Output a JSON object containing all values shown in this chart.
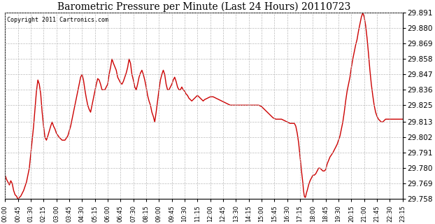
{
  "title": "Barometric Pressure per Minute (Last 24 Hours) 20110723",
  "copyright": "Copyright 2011 Cartronics.com",
  "line_color": "#cc0000",
  "bg_color": "#ffffff",
  "grid_color": "#bbbbbb",
  "yticks": [
    29.758,
    29.769,
    29.78,
    29.791,
    29.802,
    29.813,
    29.825,
    29.836,
    29.847,
    29.858,
    29.869,
    29.88,
    29.891
  ],
  "ymin": 29.758,
  "ymax": 29.891,
  "xtick_labels": [
    "00:00",
    "00:45",
    "01:30",
    "02:15",
    "03:00",
    "03:45",
    "04:30",
    "05:15",
    "06:00",
    "06:45",
    "07:30",
    "08:15",
    "09:00",
    "09:45",
    "10:30",
    "11:15",
    "12:00",
    "12:45",
    "13:30",
    "14:15",
    "15:00",
    "15:45",
    "16:30",
    "17:15",
    "18:00",
    "18:45",
    "19:30",
    "20:15",
    "21:00",
    "21:45",
    "22:30",
    "23:15"
  ],
  "x_values": [
    0,
    45,
    90,
    135,
    180,
    225,
    270,
    315,
    360,
    405,
    450,
    495,
    540,
    585,
    630,
    675,
    720,
    765,
    810,
    855,
    900,
    945,
    990,
    1035,
    1080,
    1125,
    1170,
    1215,
    1260,
    1305,
    1350,
    1395
  ],
  "pressure_data": [
    [
      0,
      29.775
    ],
    [
      5,
      29.772
    ],
    [
      10,
      29.77
    ],
    [
      15,
      29.768
    ],
    [
      20,
      29.771
    ],
    [
      25,
      29.769
    ],
    [
      30,
      29.764
    ],
    [
      35,
      29.761
    ],
    [
      40,
      29.76
    ],
    [
      45,
      29.758
    ],
    [
      55,
      29.76
    ],
    [
      65,
      29.764
    ],
    [
      75,
      29.77
    ],
    [
      85,
      29.78
    ],
    [
      90,
      29.79
    ],
    [
      100,
      29.81
    ],
    [
      110,
      29.835
    ],
    [
      115,
      29.843
    ],
    [
      120,
      29.84
    ],
    [
      125,
      29.833
    ],
    [
      130,
      29.82
    ],
    [
      135,
      29.81
    ],
    [
      140,
      29.802
    ],
    [
      145,
      29.8
    ],
    [
      150,
      29.803
    ],
    [
      160,
      29.81
    ],
    [
      165,
      29.813
    ],
    [
      170,
      29.81
    ],
    [
      175,
      29.808
    ],
    [
      180,
      29.805
    ],
    [
      190,
      29.802
    ],
    [
      200,
      29.8
    ],
    [
      210,
      29.8
    ],
    [
      220,
      29.803
    ],
    [
      230,
      29.81
    ],
    [
      240,
      29.82
    ],
    [
      250,
      29.83
    ],
    [
      260,
      29.84
    ],
    [
      265,
      29.845
    ],
    [
      270,
      29.847
    ],
    [
      275,
      29.843
    ],
    [
      280,
      29.836
    ],
    [
      285,
      29.83
    ],
    [
      290,
      29.825
    ],
    [
      295,
      29.822
    ],
    [
      300,
      29.82
    ],
    [
      305,
      29.825
    ],
    [
      315,
      29.835
    ],
    [
      320,
      29.84
    ],
    [
      325,
      29.844
    ],
    [
      330,
      29.843
    ],
    [
      335,
      29.84
    ],
    [
      340,
      29.836
    ],
    [
      350,
      29.836
    ],
    [
      355,
      29.838
    ],
    [
      360,
      29.84
    ],
    [
      365,
      29.847
    ],
    [
      370,
      29.852
    ],
    [
      375,
      29.858
    ],
    [
      380,
      29.855
    ],
    [
      390,
      29.85
    ],
    [
      395,
      29.845
    ],
    [
      400,
      29.843
    ],
    [
      405,
      29.841
    ],
    [
      410,
      29.84
    ],
    [
      415,
      29.842
    ],
    [
      420,
      29.845
    ],
    [
      425,
      29.848
    ],
    [
      430,
      29.852
    ],
    [
      435,
      29.858
    ],
    [
      440,
      29.855
    ],
    [
      445,
      29.847
    ],
    [
      450,
      29.843
    ],
    [
      455,
      29.838
    ],
    [
      460,
      29.836
    ],
    [
      465,
      29.84
    ],
    [
      470,
      29.845
    ],
    [
      475,
      29.848
    ],
    [
      480,
      29.85
    ],
    [
      485,
      29.847
    ],
    [
      490,
      29.843
    ],
    [
      495,
      29.838
    ],
    [
      500,
      29.832
    ],
    [
      505,
      29.828
    ],
    [
      510,
      29.825
    ],
    [
      515,
      29.82
    ],
    [
      520,
      29.817
    ],
    [
      525,
      29.813
    ],
    [
      530,
      29.82
    ],
    [
      535,
      29.828
    ],
    [
      540,
      29.836
    ],
    [
      545,
      29.843
    ],
    [
      550,
      29.847
    ],
    [
      555,
      29.85
    ],
    [
      560,
      29.847
    ],
    [
      565,
      29.84
    ],
    [
      570,
      29.836
    ],
    [
      575,
      29.836
    ],
    [
      580,
      29.838
    ],
    [
      585,
      29.84
    ],
    [
      590,
      29.843
    ],
    [
      595,
      29.845
    ],
    [
      600,
      29.842
    ],
    [
      605,
      29.838
    ],
    [
      610,
      29.836
    ],
    [
      615,
      29.836
    ],
    [
      620,
      29.838
    ],
    [
      625,
      29.836
    ],
    [
      630,
      29.835
    ],
    [
      635,
      29.833
    ],
    [
      640,
      29.832
    ],
    [
      645,
      29.83
    ],
    [
      650,
      29.829
    ],
    [
      655,
      29.828
    ],
    [
      660,
      29.829
    ],
    [
      665,
      29.83
    ],
    [
      670,
      29.831
    ],
    [
      675,
      29.832
    ],
    [
      680,
      29.831
    ],
    [
      685,
      29.83
    ],
    [
      690,
      29.829
    ],
    [
      695,
      29.828
    ],
    [
      700,
      29.829
    ],
    [
      710,
      29.83
    ],
    [
      720,
      29.831
    ],
    [
      730,
      29.831
    ],
    [
      740,
      29.83
    ],
    [
      750,
      29.829
    ],
    [
      760,
      29.828
    ],
    [
      770,
      29.827
    ],
    [
      780,
      29.826
    ],
    [
      790,
      29.825
    ],
    [
      800,
      29.825
    ],
    [
      810,
      29.825
    ],
    [
      820,
      29.825
    ],
    [
      830,
      29.825
    ],
    [
      840,
      29.825
    ],
    [
      850,
      29.825
    ],
    [
      860,
      29.825
    ],
    [
      870,
      29.825
    ],
    [
      880,
      29.825
    ],
    [
      890,
      29.825
    ],
    [
      900,
      29.824
    ],
    [
      910,
      29.822
    ],
    [
      920,
      29.82
    ],
    [
      930,
      29.818
    ],
    [
      940,
      29.816
    ],
    [
      950,
      29.815
    ],
    [
      960,
      29.815
    ],
    [
      970,
      29.815
    ],
    [
      980,
      29.814
    ],
    [
      990,
      29.813
    ],
    [
      1000,
      29.812
    ],
    [
      1010,
      29.812
    ],
    [
      1015,
      29.812
    ],
    [
      1020,
      29.81
    ],
    [
      1025,
      29.805
    ],
    [
      1030,
      29.798
    ],
    [
      1035,
      29.788
    ],
    [
      1040,
      29.778
    ],
    [
      1045,
      29.769
    ],
    [
      1047,
      29.764
    ],
    [
      1050,
      29.76
    ],
    [
      1053,
      29.759
    ],
    [
      1055,
      29.76
    ],
    [
      1057,
      29.762
    ],
    [
      1060,
      29.764
    ],
    [
      1065,
      29.768
    ],
    [
      1070,
      29.771
    ],
    [
      1075,
      29.773
    ],
    [
      1080,
      29.775
    ],
    [
      1085,
      29.775
    ],
    [
      1090,
      29.776
    ],
    [
      1095,
      29.778
    ],
    [
      1100,
      29.78
    ],
    [
      1105,
      29.78
    ],
    [
      1110,
      29.779
    ],
    [
      1115,
      29.778
    ],
    [
      1120,
      29.778
    ],
    [
      1125,
      29.779
    ],
    [
      1130,
      29.783
    ],
    [
      1140,
      29.788
    ],
    [
      1150,
      29.791
    ],
    [
      1155,
      29.793
    ],
    [
      1160,
      29.795
    ],
    [
      1165,
      29.797
    ],
    [
      1170,
      29.8
    ],
    [
      1175,
      29.803
    ],
    [
      1180,
      29.808
    ],
    [
      1185,
      29.813
    ],
    [
      1190,
      29.82
    ],
    [
      1195,
      29.828
    ],
    [
      1200,
      29.835
    ],
    [
      1210,
      29.845
    ],
    [
      1215,
      29.852
    ],
    [
      1220,
      29.858
    ],
    [
      1225,
      29.863
    ],
    [
      1230,
      29.868
    ],
    [
      1235,
      29.872
    ],
    [
      1240,
      29.878
    ],
    [
      1245,
      29.883
    ],
    [
      1250,
      29.888
    ],
    [
      1255,
      29.891
    ],
    [
      1260,
      29.888
    ],
    [
      1265,
      29.882
    ],
    [
      1270,
      29.873
    ],
    [
      1275,
      29.862
    ],
    [
      1280,
      29.85
    ],
    [
      1285,
      29.84
    ],
    [
      1290,
      29.832
    ],
    [
      1295,
      29.825
    ],
    [
      1300,
      29.82
    ],
    [
      1305,
      29.817
    ],
    [
      1310,
      29.815
    ],
    [
      1315,
      29.814
    ],
    [
      1320,
      29.813
    ],
    [
      1325,
      29.813
    ],
    [
      1330,
      29.814
    ],
    [
      1335,
      29.815
    ],
    [
      1340,
      29.815
    ],
    [
      1345,
      29.815
    ],
    [
      1350,
      29.815
    ],
    [
      1360,
      29.815
    ],
    [
      1370,
      29.815
    ],
    [
      1380,
      29.815
    ],
    [
      1390,
      29.815
    ],
    [
      1395,
      29.815
    ]
  ]
}
